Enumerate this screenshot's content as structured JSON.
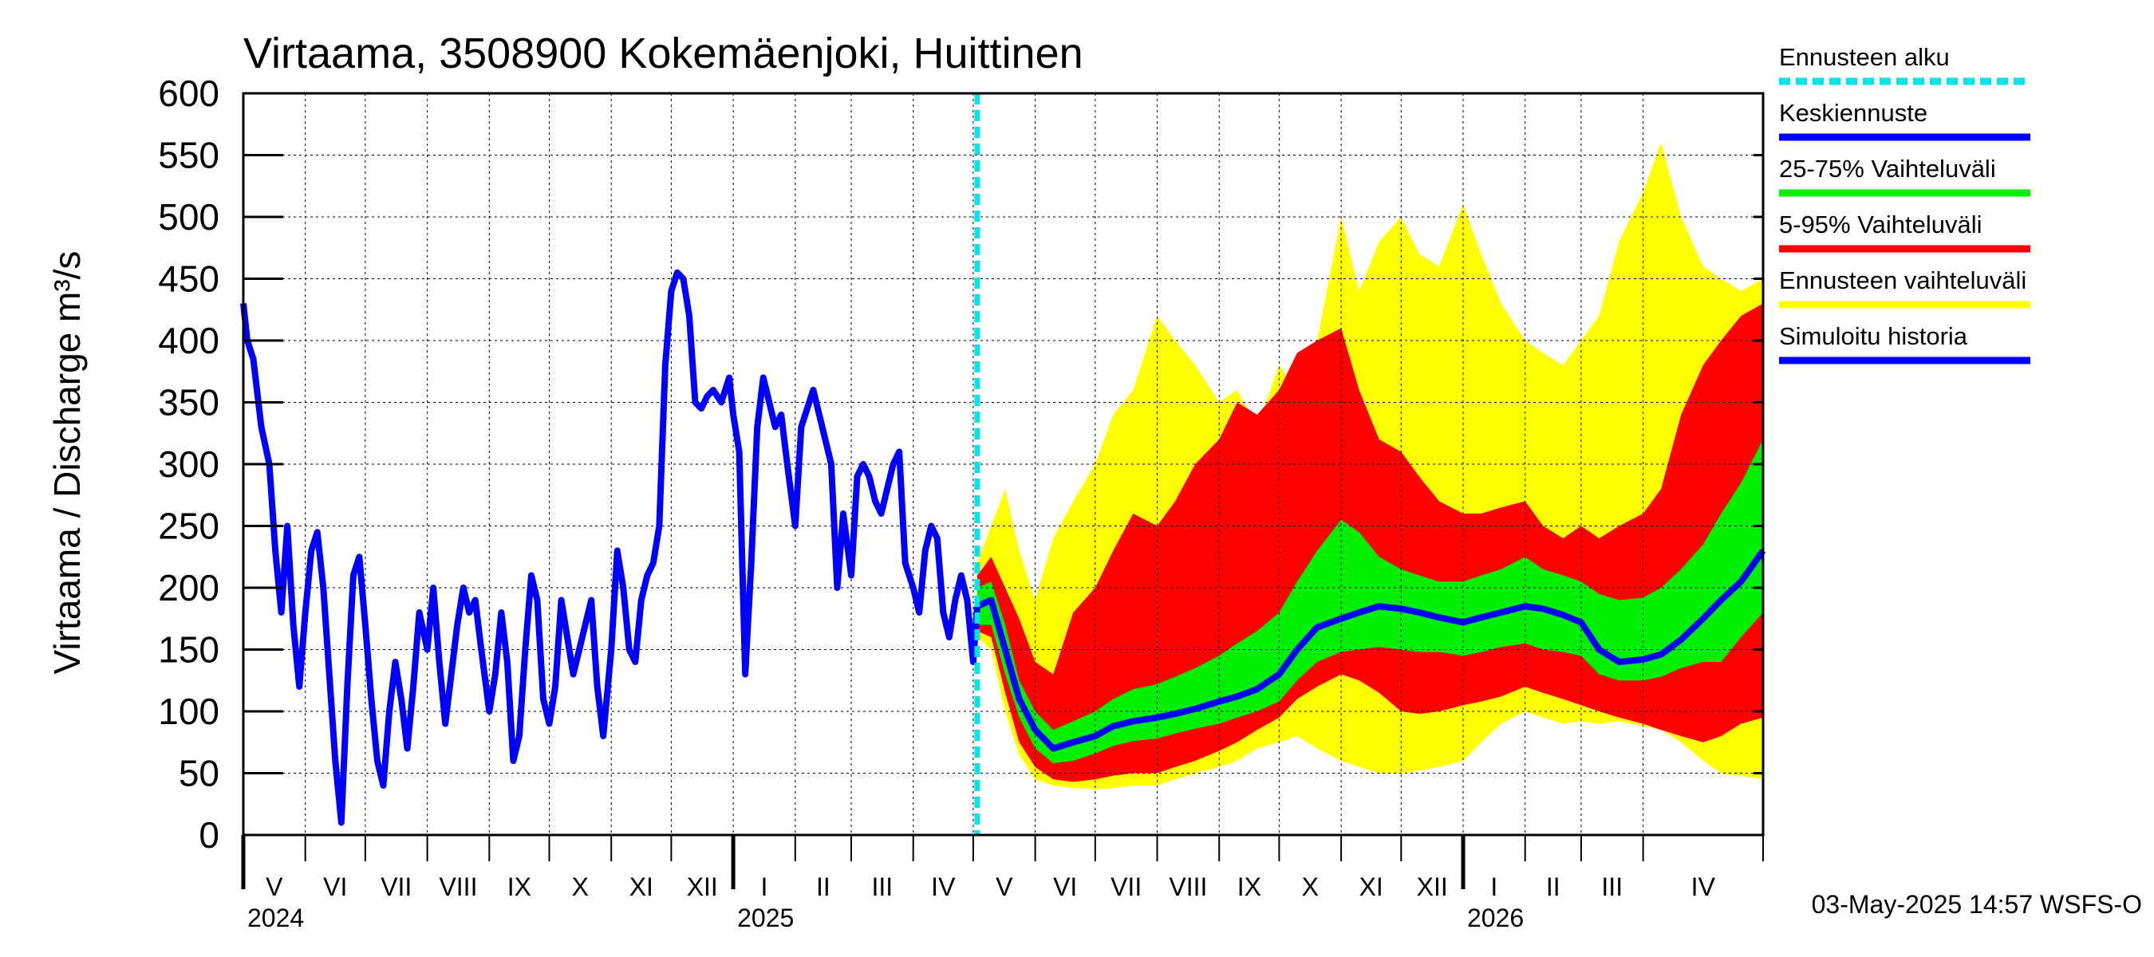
{
  "chart_data": {
    "type": "area",
    "title": "Virtaama, 3508900 Kokemäenjoki, Huittinen",
    "ylabel": "Virtaama / Discharge    m³/s",
    "ylim": [
      0,
      600
    ],
    "yticks": [
      0,
      50,
      100,
      150,
      200,
      250,
      300,
      350,
      400,
      450,
      500,
      550,
      600
    ],
    "xlim": [
      "2024-05-01",
      "2026-05-31"
    ],
    "grid": true,
    "legend_position": "right",
    "months": [
      {
        "label": "V",
        "start": "2024-05-01"
      },
      {
        "label": "VI",
        "start": "2024-06-01"
      },
      {
        "label": "VII",
        "start": "2024-07-01"
      },
      {
        "label": "VIII",
        "start": "2024-08-01"
      },
      {
        "label": "IX",
        "start": "2024-09-01"
      },
      {
        "label": "X",
        "start": "2024-10-01"
      },
      {
        "label": "XI",
        "start": "2024-11-01"
      },
      {
        "label": "XII",
        "start": "2024-12-01"
      },
      {
        "label": "I",
        "start": "2025-01-01"
      },
      {
        "label": "II",
        "start": "2025-02-01"
      },
      {
        "label": "III",
        "start": "2025-03-01"
      },
      {
        "label": "IV",
        "start": "2025-04-01"
      },
      {
        "label": "V",
        "start": "2025-05-01"
      },
      {
        "label": "VI",
        "start": "2025-06-01"
      },
      {
        "label": "VII",
        "start": "2025-07-01"
      },
      {
        "label": "VIII",
        "start": "2025-08-01"
      },
      {
        "label": "IX",
        "start": "2025-09-01"
      },
      {
        "label": "X",
        "start": "2025-10-01"
      },
      {
        "label": "XI",
        "start": "2025-11-01"
      },
      {
        "label": "XII",
        "start": "2025-12-01"
      },
      {
        "label": "I",
        "start": "2026-01-01"
      },
      {
        "label": "II",
        "start": "2026-02-01"
      },
      {
        "label": "III",
        "start": "2026-03-01"
      },
      {
        "label": "IV",
        "start": "2026-04-01"
      }
    ],
    "years": [
      {
        "label": "2024",
        "at": "2024-05-01"
      },
      {
        "label": "2025",
        "at": "2025-01-01"
      },
      {
        "label": "2026",
        "at": "2026-01-01"
      }
    ],
    "forecast_start": "2025-05-03",
    "legend": [
      {
        "label": "Ennusteen alku",
        "color": "#00e5e5",
        "style": "dashed"
      },
      {
        "label": "Keskiennuste",
        "color": "#0000ff",
        "style": "solid"
      },
      {
        "label": "25-75% Vaihteluväli",
        "color": "#00ee00",
        "style": "solid"
      },
      {
        "label": "5-95% Vaihteluväli",
        "color": "#ff0000",
        "style": "solid"
      },
      {
        "label": "Ennusteen vaihteluväli",
        "color": "#ffff00",
        "style": "solid"
      },
      {
        "label": "Simuloitu historia",
        "color": "#0000ff",
        "style": "solid"
      }
    ],
    "history": {
      "name": "Simuloitu historia",
      "color": "#0000ff",
      "x": [
        "2024-05-01",
        "2024-05-03",
        "2024-05-06",
        "2024-05-10",
        "2024-05-14",
        "2024-05-17",
        "2024-05-20",
        "2024-05-23",
        "2024-05-26",
        "2024-05-29",
        "2024-06-01",
        "2024-06-04",
        "2024-06-07",
        "2024-06-10",
        "2024-06-13",
        "2024-06-16",
        "2024-06-19",
        "2024-06-22",
        "2024-06-25",
        "2024-06-28",
        "2024-07-01",
        "2024-07-04",
        "2024-07-07",
        "2024-07-10",
        "2024-07-13",
        "2024-07-16",
        "2024-07-19",
        "2024-07-22",
        "2024-07-25",
        "2024-07-28",
        "2024-08-01",
        "2024-08-04",
        "2024-08-07",
        "2024-08-10",
        "2024-08-13",
        "2024-08-16",
        "2024-08-19",
        "2024-08-22",
        "2024-08-25",
        "2024-08-28",
        "2024-09-01",
        "2024-09-04",
        "2024-09-07",
        "2024-09-10",
        "2024-09-13",
        "2024-09-16",
        "2024-09-19",
        "2024-09-22",
        "2024-09-25",
        "2024-09-28",
        "2024-10-01",
        "2024-10-04",
        "2024-10-07",
        "2024-10-10",
        "2024-10-13",
        "2024-10-16",
        "2024-10-19",
        "2024-10-22",
        "2024-10-25",
        "2024-10-28",
        "2024-11-01",
        "2024-11-04",
        "2024-11-07",
        "2024-11-10",
        "2024-11-13",
        "2024-11-16",
        "2024-11-19",
        "2024-11-22",
        "2024-11-25",
        "2024-11-28",
        "2024-12-01",
        "2024-12-04",
        "2024-12-07",
        "2024-12-10",
        "2024-12-13",
        "2024-12-16",
        "2024-12-19",
        "2024-12-22",
        "2024-12-26",
        "2024-12-30",
        "2025-01-01",
        "2025-01-04",
        "2025-01-07",
        "2025-01-10",
        "2025-01-13",
        "2025-01-16",
        "2025-01-19",
        "2025-01-22",
        "2025-01-25",
        "2025-01-28",
        "2025-02-01",
        "2025-02-04",
        "2025-02-07",
        "2025-02-10",
        "2025-02-13",
        "2025-02-16",
        "2025-02-19",
        "2025-02-22",
        "2025-02-25",
        "2025-03-01",
        "2025-03-04",
        "2025-03-07",
        "2025-03-10",
        "2025-03-13",
        "2025-03-16",
        "2025-03-19",
        "2025-03-22",
        "2025-03-25",
        "2025-03-28",
        "2025-04-01",
        "2025-04-04",
        "2025-04-07",
        "2025-04-10",
        "2025-04-13",
        "2025-04-16",
        "2025-04-19",
        "2025-04-22",
        "2025-04-25",
        "2025-04-28",
        "2025-05-01",
        "2025-05-03"
      ],
      "y": [
        430,
        400,
        385,
        330,
        300,
        230,
        180,
        250,
        170,
        120,
        180,
        230,
        245,
        200,
        130,
        60,
        10,
        120,
        210,
        225,
        170,
        110,
        60,
        40,
        100,
        140,
        110,
        70,
        120,
        180,
        150,
        200,
        140,
        90,
        130,
        170,
        200,
        180,
        190,
        150,
        100,
        130,
        180,
        140,
        60,
        80,
        150,
        210,
        190,
        110,
        90,
        120,
        190,
        160,
        130,
        150,
        170,
        190,
        120,
        80,
        150,
        230,
        200,
        150,
        140,
        190,
        210,
        220,
        250,
        380,
        440,
        455,
        450,
        420,
        350,
        345,
        355,
        360,
        350,
        370,
        340,
        310,
        130,
        220,
        330,
        370,
        350,
        330,
        340,
        300,
        250,
        330,
        345,
        360,
        340,
        320,
        300,
        200,
        260,
        210,
        290,
        300,
        290,
        270,
        260,
        280,
        300,
        310,
        220,
        200,
        180,
        230,
        250,
        240,
        180,
        160,
        190,
        210,
        190,
        140,
        185
      ]
    },
    "forecast": {
      "x": [
        "2025-05-03",
        "2025-05-10",
        "2025-05-17",
        "2025-05-24",
        "2025-06-01",
        "2025-06-10",
        "2025-06-20",
        "2025-07-01",
        "2025-07-10",
        "2025-07-20",
        "2025-08-01",
        "2025-08-10",
        "2025-08-20",
        "2025-09-01",
        "2025-09-10",
        "2025-09-20",
        "2025-10-01",
        "2025-10-10",
        "2025-10-20",
        "2025-11-01",
        "2025-11-10",
        "2025-11-20",
        "2025-12-01",
        "2025-12-10",
        "2025-12-20",
        "2026-01-01",
        "2026-01-10",
        "2026-01-20",
        "2026-02-01",
        "2026-02-10",
        "2026-02-20",
        "2026-03-01",
        "2026-03-10",
        "2026-03-20",
        "2026-04-01",
        "2026-04-10",
        "2026-04-20",
        "2026-05-01",
        "2026-05-10",
        "2026-05-20",
        "2026-05-31"
      ],
      "median": [
        185,
        190,
        150,
        110,
        85,
        70,
        75,
        80,
        88,
        92,
        95,
        98,
        102,
        108,
        112,
        118,
        130,
        150,
        168,
        175,
        180,
        185,
        183,
        180,
        176,
        172,
        176,
        180,
        185,
        183,
        178,
        172,
        150,
        140,
        142,
        146,
        158,
        175,
        190,
        205,
        230
      ],
      "p25": [
        170,
        170,
        130,
        95,
        70,
        58,
        60,
        66,
        72,
        76,
        78,
        82,
        86,
        90,
        95,
        100,
        108,
        125,
        140,
        148,
        150,
        152,
        150,
        148,
        148,
        145,
        148,
        152,
        155,
        150,
        148,
        145,
        130,
        125,
        125,
        128,
        135,
        140,
        140,
        160,
        180
      ],
      "p75": [
        200,
        205,
        170,
        125,
        100,
        85,
        92,
        100,
        110,
        118,
        122,
        128,
        135,
        145,
        155,
        165,
        180,
        205,
        230,
        255,
        245,
        225,
        215,
        210,
        205,
        205,
        210,
        215,
        225,
        215,
        210,
        205,
        195,
        190,
        192,
        200,
        215,
        235,
        260,
        285,
        320
      ],
      "p5": [
        165,
        160,
        115,
        75,
        55,
        45,
        43,
        45,
        48,
        50,
        50,
        55,
        60,
        68,
        75,
        85,
        95,
        110,
        120,
        130,
        125,
        115,
        100,
        98,
        100,
        105,
        108,
        112,
        120,
        115,
        110,
        105,
        100,
        95,
        90,
        85,
        80,
        75,
        80,
        90,
        95
      ],
      "p95": [
        210,
        225,
        200,
        175,
        140,
        130,
        180,
        200,
        230,
        260,
        250,
        270,
        300,
        320,
        350,
        340,
        360,
        390,
        400,
        410,
        360,
        320,
        310,
        290,
        270,
        260,
        260,
        265,
        270,
        250,
        240,
        250,
        240,
        250,
        260,
        280,
        340,
        380,
        400,
        420,
        430
      ],
      "min": [
        160,
        150,
        100,
        65,
        45,
        40,
        38,
        37,
        38,
        40,
        40,
        45,
        50,
        55,
        60,
        70,
        75,
        80,
        70,
        60,
        55,
        50,
        50,
        52,
        55,
        60,
        75,
        90,
        100,
        95,
        90,
        92,
        90,
        92,
        88,
        85,
        75,
        60,
        50,
        48,
        45
      ],
      "max": [
        220,
        250,
        280,
        230,
        190,
        240,
        270,
        300,
        340,
        360,
        420,
        400,
        380,
        350,
        360,
        330,
        380,
        360,
        400,
        500,
        440,
        480,
        500,
        470,
        460,
        510,
        470,
        430,
        400,
        390,
        380,
        400,
        420,
        480,
        520,
        560,
        500,
        460,
        450,
        440,
        450
      ]
    }
  },
  "footer": "03-May-2025 14:57 WSFS-O"
}
